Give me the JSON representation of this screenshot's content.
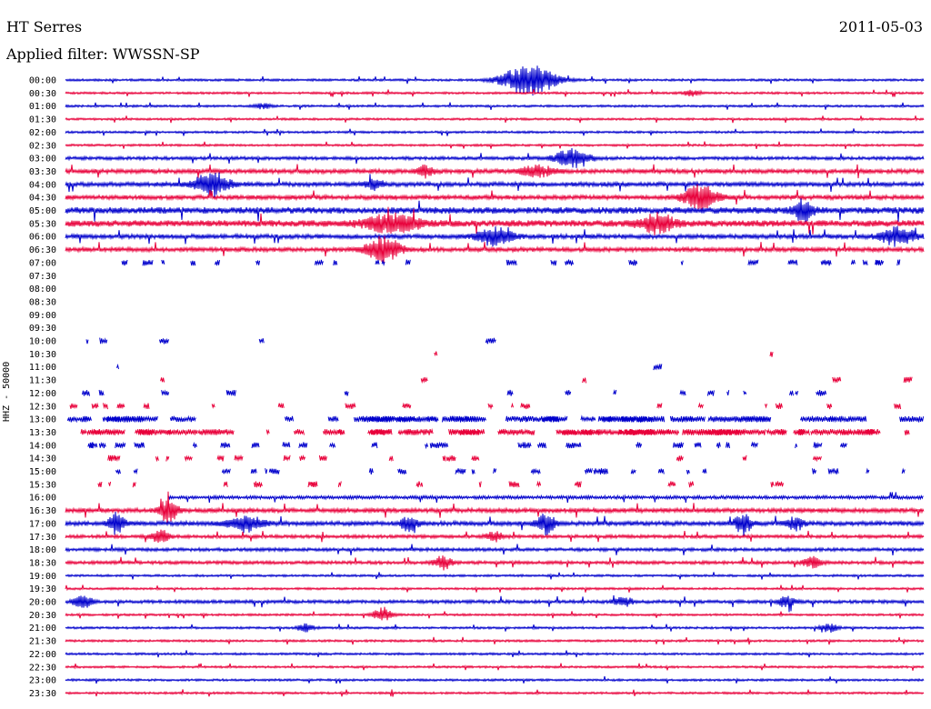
{
  "header": {
    "station": "HT Serres",
    "date": "2011-05-03",
    "filter": "Applied filter: WWSSN-SP"
  },
  "chart_data": {
    "type": "line",
    "title": "HT Serres",
    "subtitle": "Applied filter: WWSSN-SP",
    "ylabel": "HHZ - 50000",
    "colors": {
      "even_rows": "#0000cc",
      "odd_rows": "#e8003a"
    },
    "grid": false,
    "rows": [
      {
        "label": "00:00",
        "coverage": 1.0,
        "noise": 1,
        "events": [
          {
            "x": 0.54,
            "amp": 12,
            "width": 0.03
          }
        ]
      },
      {
        "label": "00:30",
        "coverage": 1.0,
        "noise": 1,
        "events": [
          {
            "x": 0.73,
            "amp": 2,
            "width": 0.01
          }
        ]
      },
      {
        "label": "01:00",
        "coverage": 1.0,
        "noise": 1,
        "events": [
          {
            "x": 0.23,
            "amp": 2,
            "width": 0.01
          }
        ]
      },
      {
        "label": "01:30",
        "coverage": 1.0,
        "noise": 1,
        "events": []
      },
      {
        "label": "02:00",
        "coverage": 1.0,
        "noise": 1,
        "events": []
      },
      {
        "label": "02:30",
        "coverage": 1.0,
        "noise": 1,
        "events": []
      },
      {
        "label": "03:00",
        "coverage": 1.0,
        "noise": 1.5,
        "events": [
          {
            "x": 0.59,
            "amp": 7,
            "width": 0.02
          }
        ]
      },
      {
        "label": "03:30",
        "coverage": 1.0,
        "noise": 2,
        "events": [
          {
            "x": 0.42,
            "amp": 4,
            "width": 0.01
          },
          {
            "x": 0.55,
            "amp": 4,
            "width": 0.02
          }
        ]
      },
      {
        "label": "04:00",
        "coverage": 1.0,
        "noise": 2,
        "events": [
          {
            "x": 0.17,
            "amp": 8,
            "width": 0.02
          },
          {
            "x": 0.36,
            "amp": 4,
            "width": 0.01
          }
        ]
      },
      {
        "label": "04:30",
        "coverage": 1.0,
        "noise": 2,
        "events": [
          {
            "x": 0.74,
            "amp": 9,
            "width": 0.02
          }
        ]
      },
      {
        "label": "05:00",
        "coverage": 1.0,
        "noise": 3,
        "events": [
          {
            "x": 0.86,
            "amp": 8,
            "width": 0.01
          }
        ]
      },
      {
        "label": "05:30",
        "coverage": 1.0,
        "noise": 3,
        "events": [
          {
            "x": 0.38,
            "amp": 7,
            "width": 0.03
          },
          {
            "x": 0.69,
            "amp": 7,
            "width": 0.02
          }
        ]
      },
      {
        "label": "06:00",
        "coverage": 1.0,
        "noise": 2,
        "events": [
          {
            "x": 0.5,
            "amp": 7,
            "width": 0.02
          },
          {
            "x": 0.97,
            "amp": 7,
            "width": 0.02
          }
        ]
      },
      {
        "label": "06:30",
        "coverage": 1.0,
        "noise": 2,
        "events": [
          {
            "x": 0.37,
            "amp": 9,
            "width": 0.02
          }
        ]
      },
      {
        "label": "07:00",
        "coverage": 0.27,
        "noise": 2,
        "events": []
      },
      {
        "label": "07:30",
        "coverage": 0,
        "noise": 0,
        "events": []
      },
      {
        "label": "08:00",
        "coverage": 0,
        "noise": 0,
        "events": []
      },
      {
        "label": "08:30",
        "coverage": 0,
        "noise": 0,
        "events": []
      },
      {
        "label": "09:00",
        "coverage": 0,
        "noise": 0,
        "events": []
      },
      {
        "label": "09:30",
        "coverage": 0,
        "noise": 0,
        "events": []
      },
      {
        "label": "10:00",
        "coverage": 0.06,
        "noise": 2,
        "events": []
      },
      {
        "label": "10:30",
        "coverage": 0.02,
        "noise": 2,
        "events": []
      },
      {
        "label": "11:00",
        "coverage": 0.02,
        "noise": 2,
        "events": []
      },
      {
        "label": "11:30",
        "coverage": 0.06,
        "noise": 2,
        "events": []
      },
      {
        "label": "12:00",
        "coverage": 0.18,
        "noise": 2,
        "events": []
      },
      {
        "label": "12:30",
        "coverage": 0.2,
        "noise": 2,
        "events": []
      },
      {
        "label": "13:00",
        "coverage": 0.55,
        "noise": 2,
        "events": []
      },
      {
        "label": "13:30",
        "coverage": 0.6,
        "noise": 2,
        "events": []
      },
      {
        "label": "14:00",
        "coverage": 0.35,
        "noise": 2,
        "events": []
      },
      {
        "label": "14:30",
        "coverage": 0.2,
        "noise": 2,
        "events": []
      },
      {
        "label": "15:00",
        "coverage": 0.25,
        "noise": 2,
        "events": []
      },
      {
        "label": "15:30",
        "coverage": 0.2,
        "noise": 2,
        "events": []
      },
      {
        "label": "16:00",
        "coverage": 1.0,
        "noise": 1.5,
        "events": [],
        "start": 0.12
      },
      {
        "label": "16:30",
        "coverage": 1.0,
        "noise": 2,
        "events": [
          {
            "x": 0.12,
            "amp": 9,
            "width": 0.01
          }
        ]
      },
      {
        "label": "17:00",
        "coverage": 1.0,
        "noise": 2,
        "events": [
          {
            "x": 0.06,
            "amp": 8,
            "width": 0.01
          },
          {
            "x": 0.21,
            "amp": 6,
            "width": 0.02
          },
          {
            "x": 0.4,
            "amp": 6,
            "width": 0.01
          },
          {
            "x": 0.56,
            "amp": 8,
            "width": 0.01
          },
          {
            "x": 0.79,
            "amp": 8,
            "width": 0.01
          },
          {
            "x": 0.85,
            "amp": 5,
            "width": 0.01
          }
        ]
      },
      {
        "label": "17:30",
        "coverage": 1.0,
        "noise": 1.5,
        "events": [
          {
            "x": 0.11,
            "amp": 5,
            "width": 0.01
          },
          {
            "x": 0.5,
            "amp": 4,
            "width": 0.01
          }
        ]
      },
      {
        "label": "18:00",
        "coverage": 1.0,
        "noise": 1.5,
        "events": []
      },
      {
        "label": "18:30",
        "coverage": 1.0,
        "noise": 1.5,
        "events": [
          {
            "x": 0.44,
            "amp": 5,
            "width": 0.01
          },
          {
            "x": 0.87,
            "amp": 4,
            "width": 0.01
          }
        ]
      },
      {
        "label": "19:00",
        "coverage": 1.0,
        "noise": 1,
        "events": []
      },
      {
        "label": "19:30",
        "coverage": 1.0,
        "noise": 1,
        "events": []
      },
      {
        "label": "20:00",
        "coverage": 1.0,
        "noise": 1.5,
        "events": [
          {
            "x": 0.02,
            "amp": 5,
            "width": 0.01
          },
          {
            "x": 0.65,
            "amp": 4,
            "width": 0.01
          },
          {
            "x": 0.84,
            "amp": 4,
            "width": 0.01
          }
        ]
      },
      {
        "label": "20:30",
        "coverage": 1.0,
        "noise": 1,
        "events": [
          {
            "x": 0.37,
            "amp": 6,
            "width": 0.01
          }
        ]
      },
      {
        "label": "21:00",
        "coverage": 1.0,
        "noise": 1,
        "events": [
          {
            "x": 0.28,
            "amp": 3,
            "width": 0.01
          },
          {
            "x": 0.89,
            "amp": 3,
            "width": 0.01
          }
        ]
      },
      {
        "label": "21:30",
        "coverage": 1.0,
        "noise": 1,
        "events": []
      },
      {
        "label": "22:00",
        "coverage": 1.0,
        "noise": 1,
        "events": []
      },
      {
        "label": "22:30",
        "coverage": 1.0,
        "noise": 1,
        "events": []
      },
      {
        "label": "23:00",
        "coverage": 1.0,
        "noise": 1,
        "events": []
      },
      {
        "label": "23:30",
        "coverage": 1.0,
        "noise": 1,
        "events": []
      }
    ]
  }
}
